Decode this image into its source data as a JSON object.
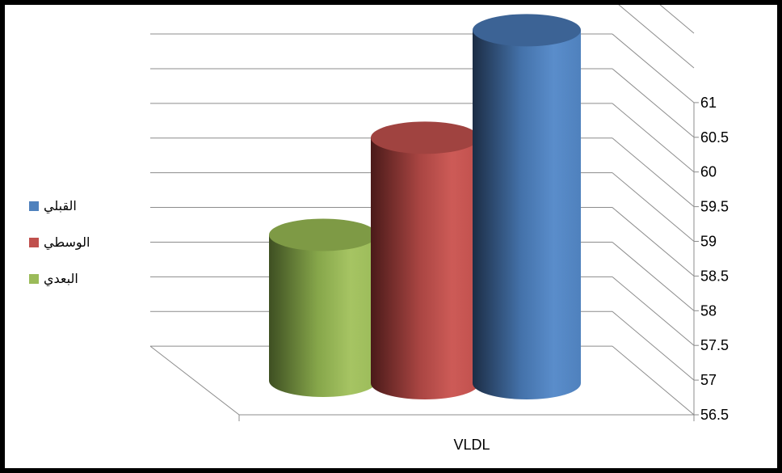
{
  "chart_data": {
    "type": "bar",
    "style": "3d-cylinder",
    "categories": [
      "VLDL"
    ],
    "series": [
      {
        "name": "البعدي",
        "values": [
          58.55
        ],
        "color": "#9BBB59"
      },
      {
        "name": "الوسطي",
        "values": [
          59.95
        ],
        "color": "#C0504D"
      },
      {
        "name": "القبلي",
        "values": [
          61.5
        ],
        "color": "#4F81BD"
      }
    ],
    "yticks": [
      "56.5",
      "57",
      "57.5",
      "58",
      "58.5",
      "59",
      "59.5",
      "60",
      "60.5",
      "61"
    ],
    "ylim": [
      56.5,
      62
    ],
    "ytick_step": 0.5,
    "y_axis_position": "right",
    "grid": true,
    "legend_position": "left",
    "legend_order": [
      "القبلي",
      "الوسطي",
      "البعدي"
    ]
  }
}
